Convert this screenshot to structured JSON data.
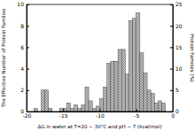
{
  "chart_data": {
    "type": "histogram",
    "x_label": "ΔG in water at T=20 ~ 30°C and pH ~ 7 (kcal/mol)",
    "y_label": "The Effective Number of Protein Families",
    "y2_label": "Protein Families (%)",
    "bins": [
      -19,
      -18.5,
      -18,
      -17.5,
      -17,
      -16.5,
      -16,
      -15.5,
      -15,
      -14.5,
      -14,
      -13.5,
      -13,
      -12.5,
      -12,
      -11.5,
      -11,
      -10.5,
      -10,
      -9.5,
      -9,
      -8.5,
      -8,
      -7.5,
      -7,
      -6.5,
      -6,
      -5.5,
      -5,
      -4.5,
      -4,
      -3.5,
      -3,
      -2.5,
      -2,
      -1.5,
      -1
    ],
    "values": [
      0.3,
      0,
      2,
      2,
      0.3,
      0,
      0,
      0.3,
      0.3,
      0.8,
      0.3,
      0.6,
      0.3,
      0.6,
      2.3,
      1,
      0.3,
      0.5,
      1.2,
      2.3,
      4.5,
      4.7,
      4.7,
      5.8,
      5.8,
      3.5,
      8.5,
      8.7,
      9.2,
      5.5,
      3.6,
      2,
      1.7,
      0.8,
      1,
      0.8
    ],
    "color": "#c8c8c8",
    "xlim": [
      -20,
      0
    ],
    "xticks": [
      -20,
      -15,
      -10,
      -5,
      0
    ],
    "ylim": [
      0,
      10
    ],
    "yticks": [
      0,
      2,
      4,
      6,
      8,
      10
    ],
    "y2lim": [
      0,
      25
    ],
    "y2ticks": [
      0,
      5,
      10,
      15,
      20,
      25
    ]
  }
}
